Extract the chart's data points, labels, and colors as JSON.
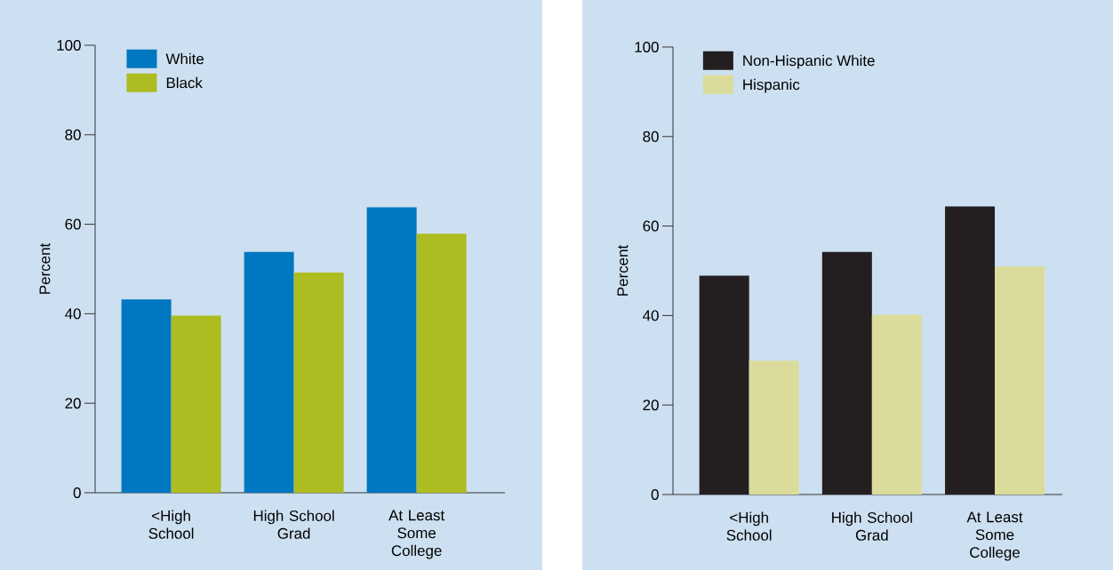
{
  "chart_data": [
    {
      "type": "bar",
      "categories": [
        "<High School",
        "High School Grad",
        "At Least Some College"
      ],
      "ylabel": "Percent",
      "ylim": [
        0,
        100
      ],
      "yticks": [
        0,
        20,
        40,
        60,
        80,
        100
      ],
      "legend": "top left",
      "series": [
        {
          "name": "White",
          "color": "#0077c1",
          "values": [
            43.2,
            53.8,
            63.8
          ]
        },
        {
          "name": "Black",
          "color": "#adbc20",
          "values": [
            39.6,
            49.2,
            57.9
          ]
        }
      ]
    },
    {
      "type": "bar",
      "categories": [
        "<High School",
        "High School Grad",
        "At Least Some College"
      ],
      "ylabel": "Percent",
      "ylim": [
        0,
        100
      ],
      "yticks": [
        0,
        20,
        40,
        60,
        80,
        100
      ],
      "legend": "top left",
      "series": [
        {
          "name": "Non-Hispanic White",
          "color": "#231f20",
          "values": [
            48.9,
            54.2,
            64.4
          ]
        },
        {
          "name": "Hispanic",
          "color": "#dbdc9b",
          "values": [
            29.9,
            40.2,
            51.0
          ]
        }
      ]
    }
  ]
}
